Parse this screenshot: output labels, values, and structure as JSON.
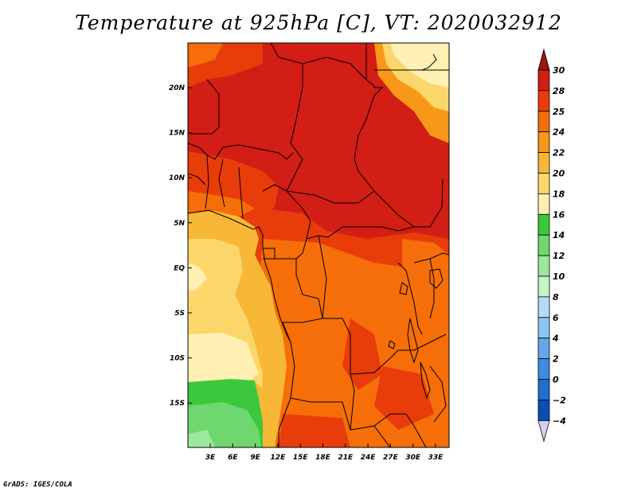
{
  "title": "Temperature at 925hPa [C], VT: 2020032912",
  "credit": "GrADS: IGES/COLA",
  "map": {
    "lon_ticks": [
      "3E",
      "6E",
      "9E",
      "12E",
      "15E",
      "18E",
      "21E",
      "24E",
      "27E",
      "30E",
      "33E"
    ],
    "lat_ticks": [
      "20N",
      "15N",
      "10N",
      "5N",
      "EQ",
      "5S",
      "10S",
      "15S"
    ]
  },
  "colorbar": {
    "labels": [
      "30",
      "28",
      "25",
      "24",
      "22",
      "20",
      "18",
      "16",
      "14",
      "12",
      "10",
      "8",
      "6",
      "4",
      "2",
      "0",
      "−2",
      "−4"
    ],
    "colors": [
      "#d21e14",
      "#e83c0a",
      "#f56e0a",
      "#f89818",
      "#f7b737",
      "#fbd76b",
      "#fff0b3",
      "#3cc83c",
      "#6ed86e",
      "#9ee89e",
      "#c8f3c8",
      "#b4dcfa",
      "#8cc4f2",
      "#64a6ea",
      "#3c8ce0",
      "#1e6ed2",
      "#0a4eb4",
      "#0a0a82"
    ],
    "top_arrow_color": "#a0140a",
    "bottom_arrow_color": "#d6d0f2"
  }
}
